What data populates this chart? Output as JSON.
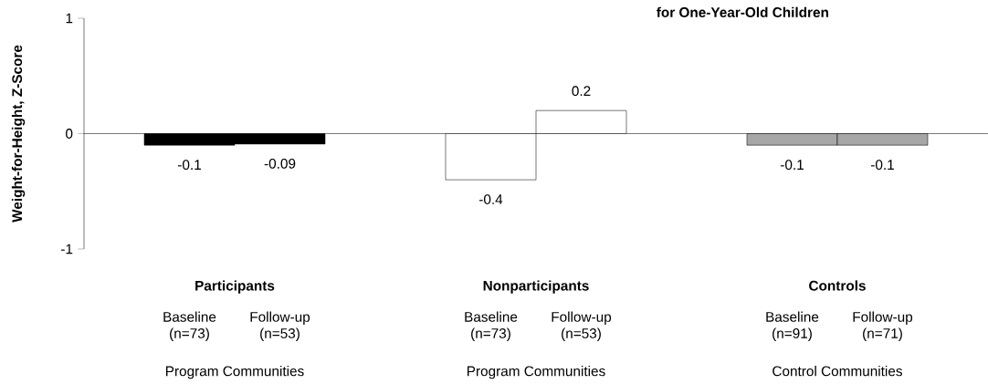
{
  "chart_data": {
    "type": "bar",
    "title": "for One-Year-Old Children",
    "ylabel": "Weight-for-Height, Z-Score",
    "categories": [
      "Participants",
      "Nonparticipants",
      "Controls"
    ],
    "series": [
      {
        "values": [
          -0.1,
          -0.4,
          -0.1
        ],
        "colors": [
          "#000000",
          "#ffffff",
          "#a6a6a6"
        ]
      },
      {
        "values": [
          -0.09,
          0.2,
          -0.1
        ],
        "colors": [
          "#000000",
          "#ffffff",
          "#a6a6a6"
        ]
      }
    ],
    "annotations": [
      "Baseline (n=73)",
      "Follow-up (n=53)",
      "Baseline (n=73)",
      "Follow-up (n=53)",
      "Baseline (n=91)",
      "Follow-up (n=71)",
      "Program Communities",
      "Program Communities",
      "Control Communities"
    ],
    "ylim": [
      -1,
      1
    ],
    "yticks": [
      -1,
      0,
      1
    ],
    "data_labels": true
  }
}
